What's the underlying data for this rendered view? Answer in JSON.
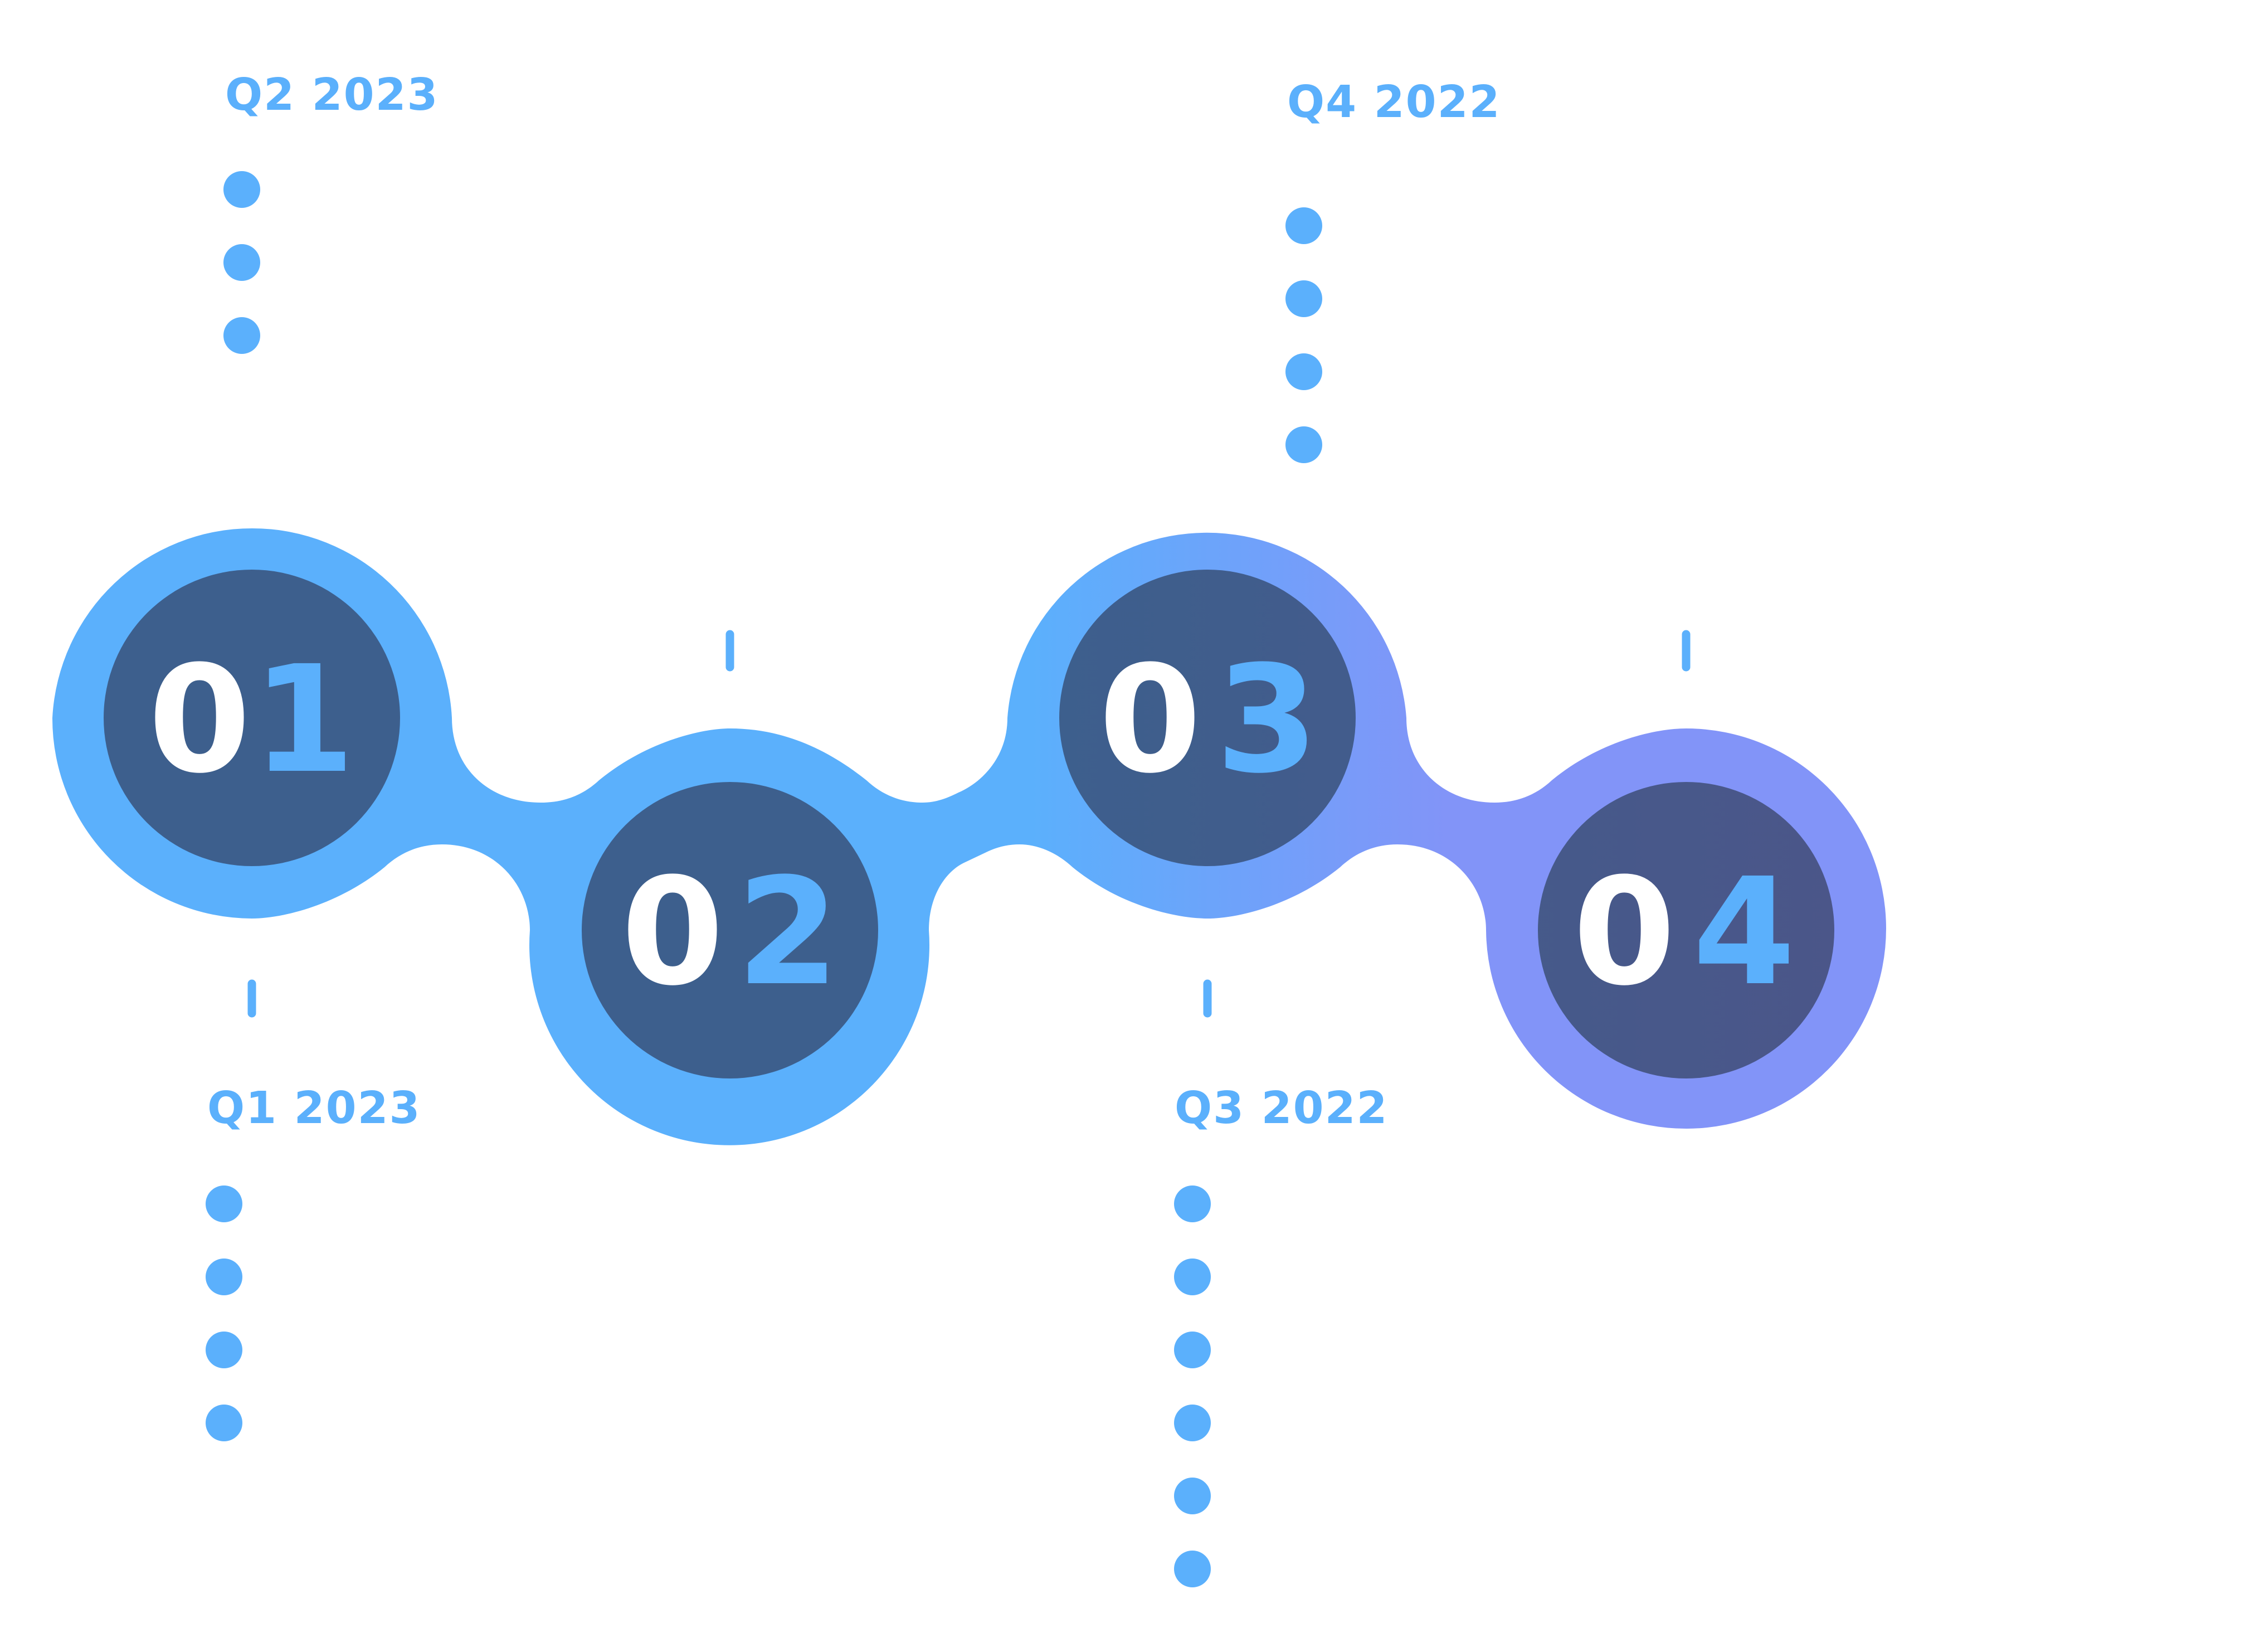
{
  "colors": {
    "ribbon_start": "#5BB0FC",
    "ribbon_end": "#8294F8",
    "disc_start": "#3D5F8D",
    "disc_end": "#4B5689",
    "digit_white": "#FFFFFF",
    "digit_accent": "#5BB0FC",
    "label": "#5BB0FC",
    "dot": "#5BB0FC"
  },
  "steps": [
    {
      "zero": "0",
      "digit": "1",
      "label": "Q1 2023",
      "bullets": 4
    },
    {
      "zero": "0",
      "digit": "2",
      "label": "Q2 2023",
      "bullets": 3
    },
    {
      "zero": "0",
      "digit": "3",
      "label": "Q3 2022",
      "bullets": 6
    },
    {
      "zero": "0",
      "digit": "4",
      "label": "Q4 2022",
      "bullets": 4
    }
  ]
}
